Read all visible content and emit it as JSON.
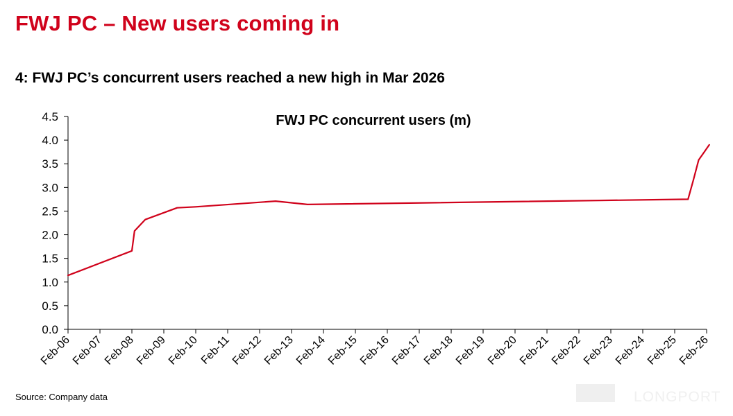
{
  "page": {
    "title": "FWJ PC – New users coming in",
    "caption": "4: FWJ PC’s concurrent users reached a new high in Mar 2026",
    "source": "Source: Company data",
    "watermark": "LONGPORT"
  },
  "colors": {
    "title": "#d0021b",
    "series": "#d0021b",
    "axis": "#000000"
  },
  "chart_data": {
    "type": "line",
    "title": "FWJ PC concurrent users (m)",
    "xlabel": "",
    "ylabel": "",
    "ylim": [
      0,
      4.5
    ],
    "yticks": [
      0.0,
      0.5,
      1.0,
      1.5,
      2.0,
      2.5,
      3.0,
      3.5,
      4.0,
      4.5
    ],
    "ytick_labels": [
      "0.0",
      "0.5",
      "1.0",
      "1.5",
      "2.0",
      "2.5",
      "3.0",
      "3.5",
      "4.0",
      "4.5"
    ],
    "xlim": [
      "2006-02",
      "2026-02"
    ],
    "xticks": [
      "Feb-06",
      "Feb-07",
      "Feb-08",
      "Feb-09",
      "Feb-10",
      "Feb-11",
      "Feb-12",
      "Feb-13",
      "Feb-14",
      "Feb-15",
      "Feb-16",
      "Feb-17",
      "Feb-18",
      "Feb-19",
      "Feb-20",
      "Feb-21",
      "Feb-22",
      "Feb-23",
      "Feb-24",
      "Feb-25",
      "Feb-26"
    ],
    "grid": false,
    "legend": "none",
    "series": [
      {
        "x": [
          "2006-02",
          "2008-02",
          "2008-03",
          "2008-07",
          "2009-07",
          "2010-02",
          "2012-08",
          "2013-08",
          "2025-07",
          "2025-09",
          "2025-11",
          "2026-03"
        ],
        "y": [
          1.14,
          1.66,
          2.08,
          2.32,
          2.57,
          2.59,
          2.71,
          2.64,
          2.75,
          3.15,
          3.58,
          3.9
        ]
      }
    ]
  }
}
